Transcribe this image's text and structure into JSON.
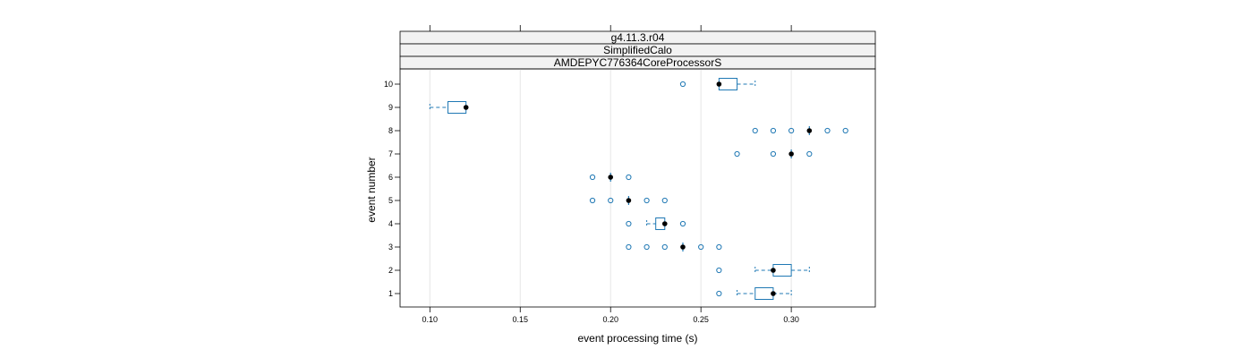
{
  "chart_data": {
    "type": "box",
    "orientation": "horizontal",
    "strips": [
      "g4.11.3.r04",
      "SimplifiedCalo",
      "AMDEPYC776364CoreProcessorS"
    ],
    "xlabel": "event processing time (s)",
    "ylabel": "event number",
    "xlim": [
      0.0835,
      0.3465
    ],
    "x_ticks": [
      0.1,
      0.15,
      0.2,
      0.25,
      0.3
    ],
    "x_tick_labels": [
      "0.10",
      "0.15",
      "0.20",
      "0.25",
      "0.30"
    ],
    "categories": [
      "1",
      "2",
      "3",
      "4",
      "5",
      "6",
      "7",
      "8",
      "9",
      "10"
    ],
    "grid": "vertical",
    "colors": {
      "box": "#1f78b4",
      "outlier": "#1f78b4",
      "median": "#000000",
      "grid": "#e6e6e6",
      "strip_bg": "#f2f2f2"
    },
    "boxes": [
      {
        "event": "1",
        "whisker_low": 0.27,
        "q1": 0.28,
        "median": 0.29,
        "q3": 0.29,
        "whisker_high": 0.3,
        "outliers": [
          0.26
        ]
      },
      {
        "event": "2",
        "whisker_low": 0.28,
        "q1": 0.29,
        "median": 0.29,
        "q3": 0.3,
        "whisker_high": 0.31,
        "outliers": [
          0.26
        ]
      },
      {
        "event": "3",
        "whisker_low": 0.24,
        "q1": 0.24,
        "median": 0.24,
        "q3": 0.24,
        "whisker_high": 0.24,
        "outliers": [
          0.21,
          0.22,
          0.23,
          0.25,
          0.26
        ]
      },
      {
        "event": "4",
        "whisker_low": 0.22,
        "q1": 0.225,
        "median": 0.23,
        "q3": 0.23,
        "whisker_high": 0.23,
        "outliers": [
          0.21,
          0.24
        ]
      },
      {
        "event": "5",
        "whisker_low": 0.21,
        "q1": 0.21,
        "median": 0.21,
        "q3": 0.21,
        "whisker_high": 0.21,
        "outliers": [
          0.19,
          0.2,
          0.22,
          0.23
        ]
      },
      {
        "event": "6",
        "whisker_low": 0.2,
        "q1": 0.2,
        "median": 0.2,
        "q3": 0.2,
        "whisker_high": 0.2,
        "outliers": [
          0.19,
          0.21
        ]
      },
      {
        "event": "7",
        "whisker_low": 0.3,
        "q1": 0.3,
        "median": 0.3,
        "q3": 0.3,
        "whisker_high": 0.3,
        "outliers": [
          0.27,
          0.29,
          0.31
        ]
      },
      {
        "event": "8",
        "whisker_low": 0.31,
        "q1": 0.31,
        "median": 0.31,
        "q3": 0.31,
        "whisker_high": 0.31,
        "outliers": [
          0.28,
          0.29,
          0.3,
          0.32,
          0.33
        ]
      },
      {
        "event": "9",
        "whisker_low": 0.1,
        "q1": 0.11,
        "median": 0.12,
        "q3": 0.12,
        "whisker_high": 0.12,
        "outliers": []
      },
      {
        "event": "10",
        "whisker_low": 0.26,
        "q1": 0.26,
        "median": 0.26,
        "q3": 0.27,
        "whisker_high": 0.28,
        "outliers": [
          0.24
        ]
      }
    ]
  }
}
